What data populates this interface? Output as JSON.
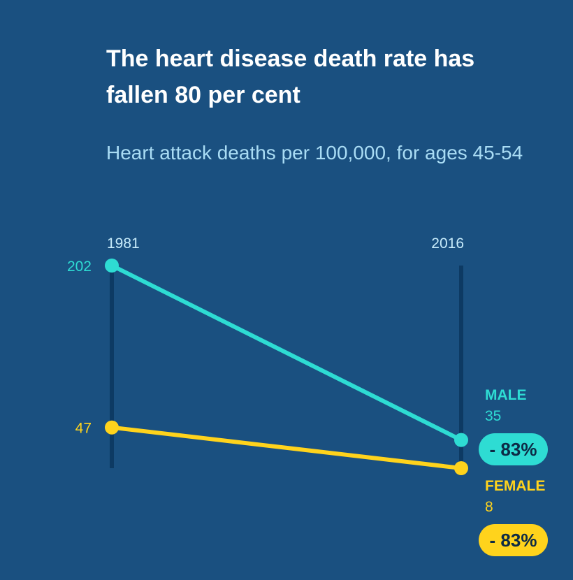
{
  "title": "The heart disease death rate has fallen 80 per cent",
  "subtitle": "Heart attack deaths per 100,000, for ages 45-54",
  "colors": {
    "background": "#1a5080",
    "male": "#2edcd3",
    "female": "#ffd31c",
    "axis": "#0d3a63",
    "year_label": "#c8ecfb"
  },
  "chart_data": {
    "type": "line",
    "title": "The heart disease death rate has fallen 80 per cent",
    "subtitle": "Heart attack deaths per 100,000, for ages 45-54",
    "categories": [
      "1981",
      "2016"
    ],
    "series": [
      {
        "name": "MALE",
        "values": [
          202,
          35
        ],
        "start_label": "202",
        "end_label": "35",
        "change": "- 83%"
      },
      {
        "name": "FEMALE",
        "values": [
          47,
          8
        ],
        "start_label": "47",
        "end_label": "8",
        "change": "- 83%"
      }
    ],
    "ylim": [
      8,
      202
    ],
    "grid": false
  }
}
